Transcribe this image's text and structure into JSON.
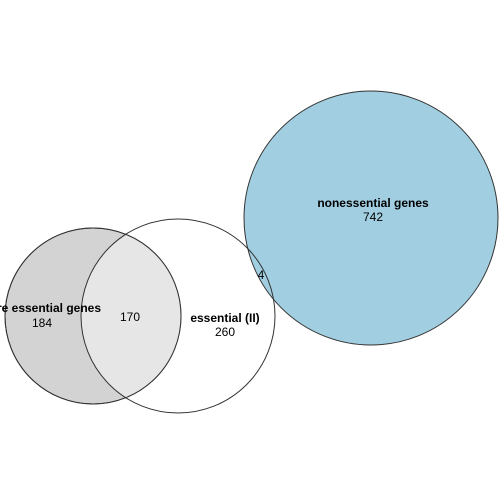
{
  "sets": [
    {
      "id": "core",
      "name": "core essential genes",
      "count": "184",
      "fill": "#d3d3d3",
      "stroke": "#333333"
    },
    {
      "id": "essential2",
      "name": "essential (II)",
      "count": "260",
      "fill": "#ffffff",
      "stroke": "#333333"
    },
    {
      "id": "nonessential",
      "name": "nonessential genes",
      "count": "742",
      "fill": "#a1cfe1",
      "stroke": "#333333"
    }
  ],
  "intersections": [
    {
      "sets": [
        "core",
        "essential2"
      ],
      "count": "170",
      "fill": "#e6e6e6"
    },
    {
      "sets": [
        "essential2",
        "nonessential"
      ],
      "count": "4"
    }
  ]
}
